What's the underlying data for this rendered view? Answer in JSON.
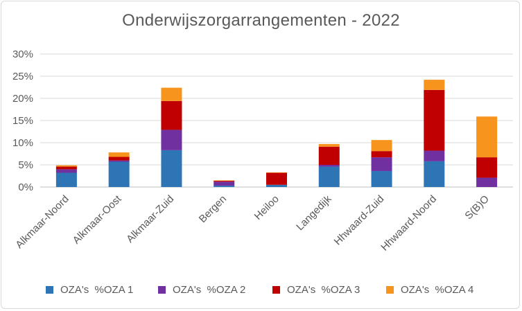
{
  "chart_data": {
    "type": "bar",
    "stacked": true,
    "title": "Onderwijszorgarrangementen  - 2022",
    "xlabel": "",
    "ylabel": "",
    "ylim": [
      0,
      30
    ],
    "yticks": [
      "0%",
      "5%",
      "10%",
      "15%",
      "20%",
      "25%",
      "30%"
    ],
    "grid": true,
    "legend_position": "bottom",
    "categories": [
      "Alkmaar-Noord",
      "Alkmaar-Oost",
      "Alkmaar-Zuid",
      "Bergen",
      "Heiloo",
      "Langedijk",
      "Hhwaard-Zuid",
      "Hhwaard-Noord",
      "S(B)O"
    ],
    "series": [
      {
        "name": "OZA's  %OZA 1",
        "color": "#2E75B6",
        "values": [
          3.2,
          5.7,
          8.3,
          0.3,
          0.5,
          4.6,
          3.6,
          5.8,
          0.0
        ]
      },
      {
        "name": "OZA's  %OZA 2",
        "color": "#7030A0",
        "values": [
          0.8,
          0.3,
          4.6,
          0.9,
          0.0,
          0.4,
          3.1,
          2.4,
          2.1
        ]
      },
      {
        "name": "OZA's  %OZA 3",
        "color": "#C00000",
        "values": [
          0.6,
          0.8,
          6.5,
          0.2,
          2.7,
          4.1,
          1.4,
          13.7,
          4.6
        ]
      },
      {
        "name": "OZA's  %OZA 4",
        "color": "#F7941D",
        "values": [
          0.3,
          1.0,
          3.0,
          0.1,
          0.1,
          0.6,
          2.5,
          2.3,
          9.2
        ]
      }
    ],
    "colors": {
      "gridline": "#d9d9d9",
      "axis": "#bfbfbf",
      "text": "#595959"
    }
  }
}
